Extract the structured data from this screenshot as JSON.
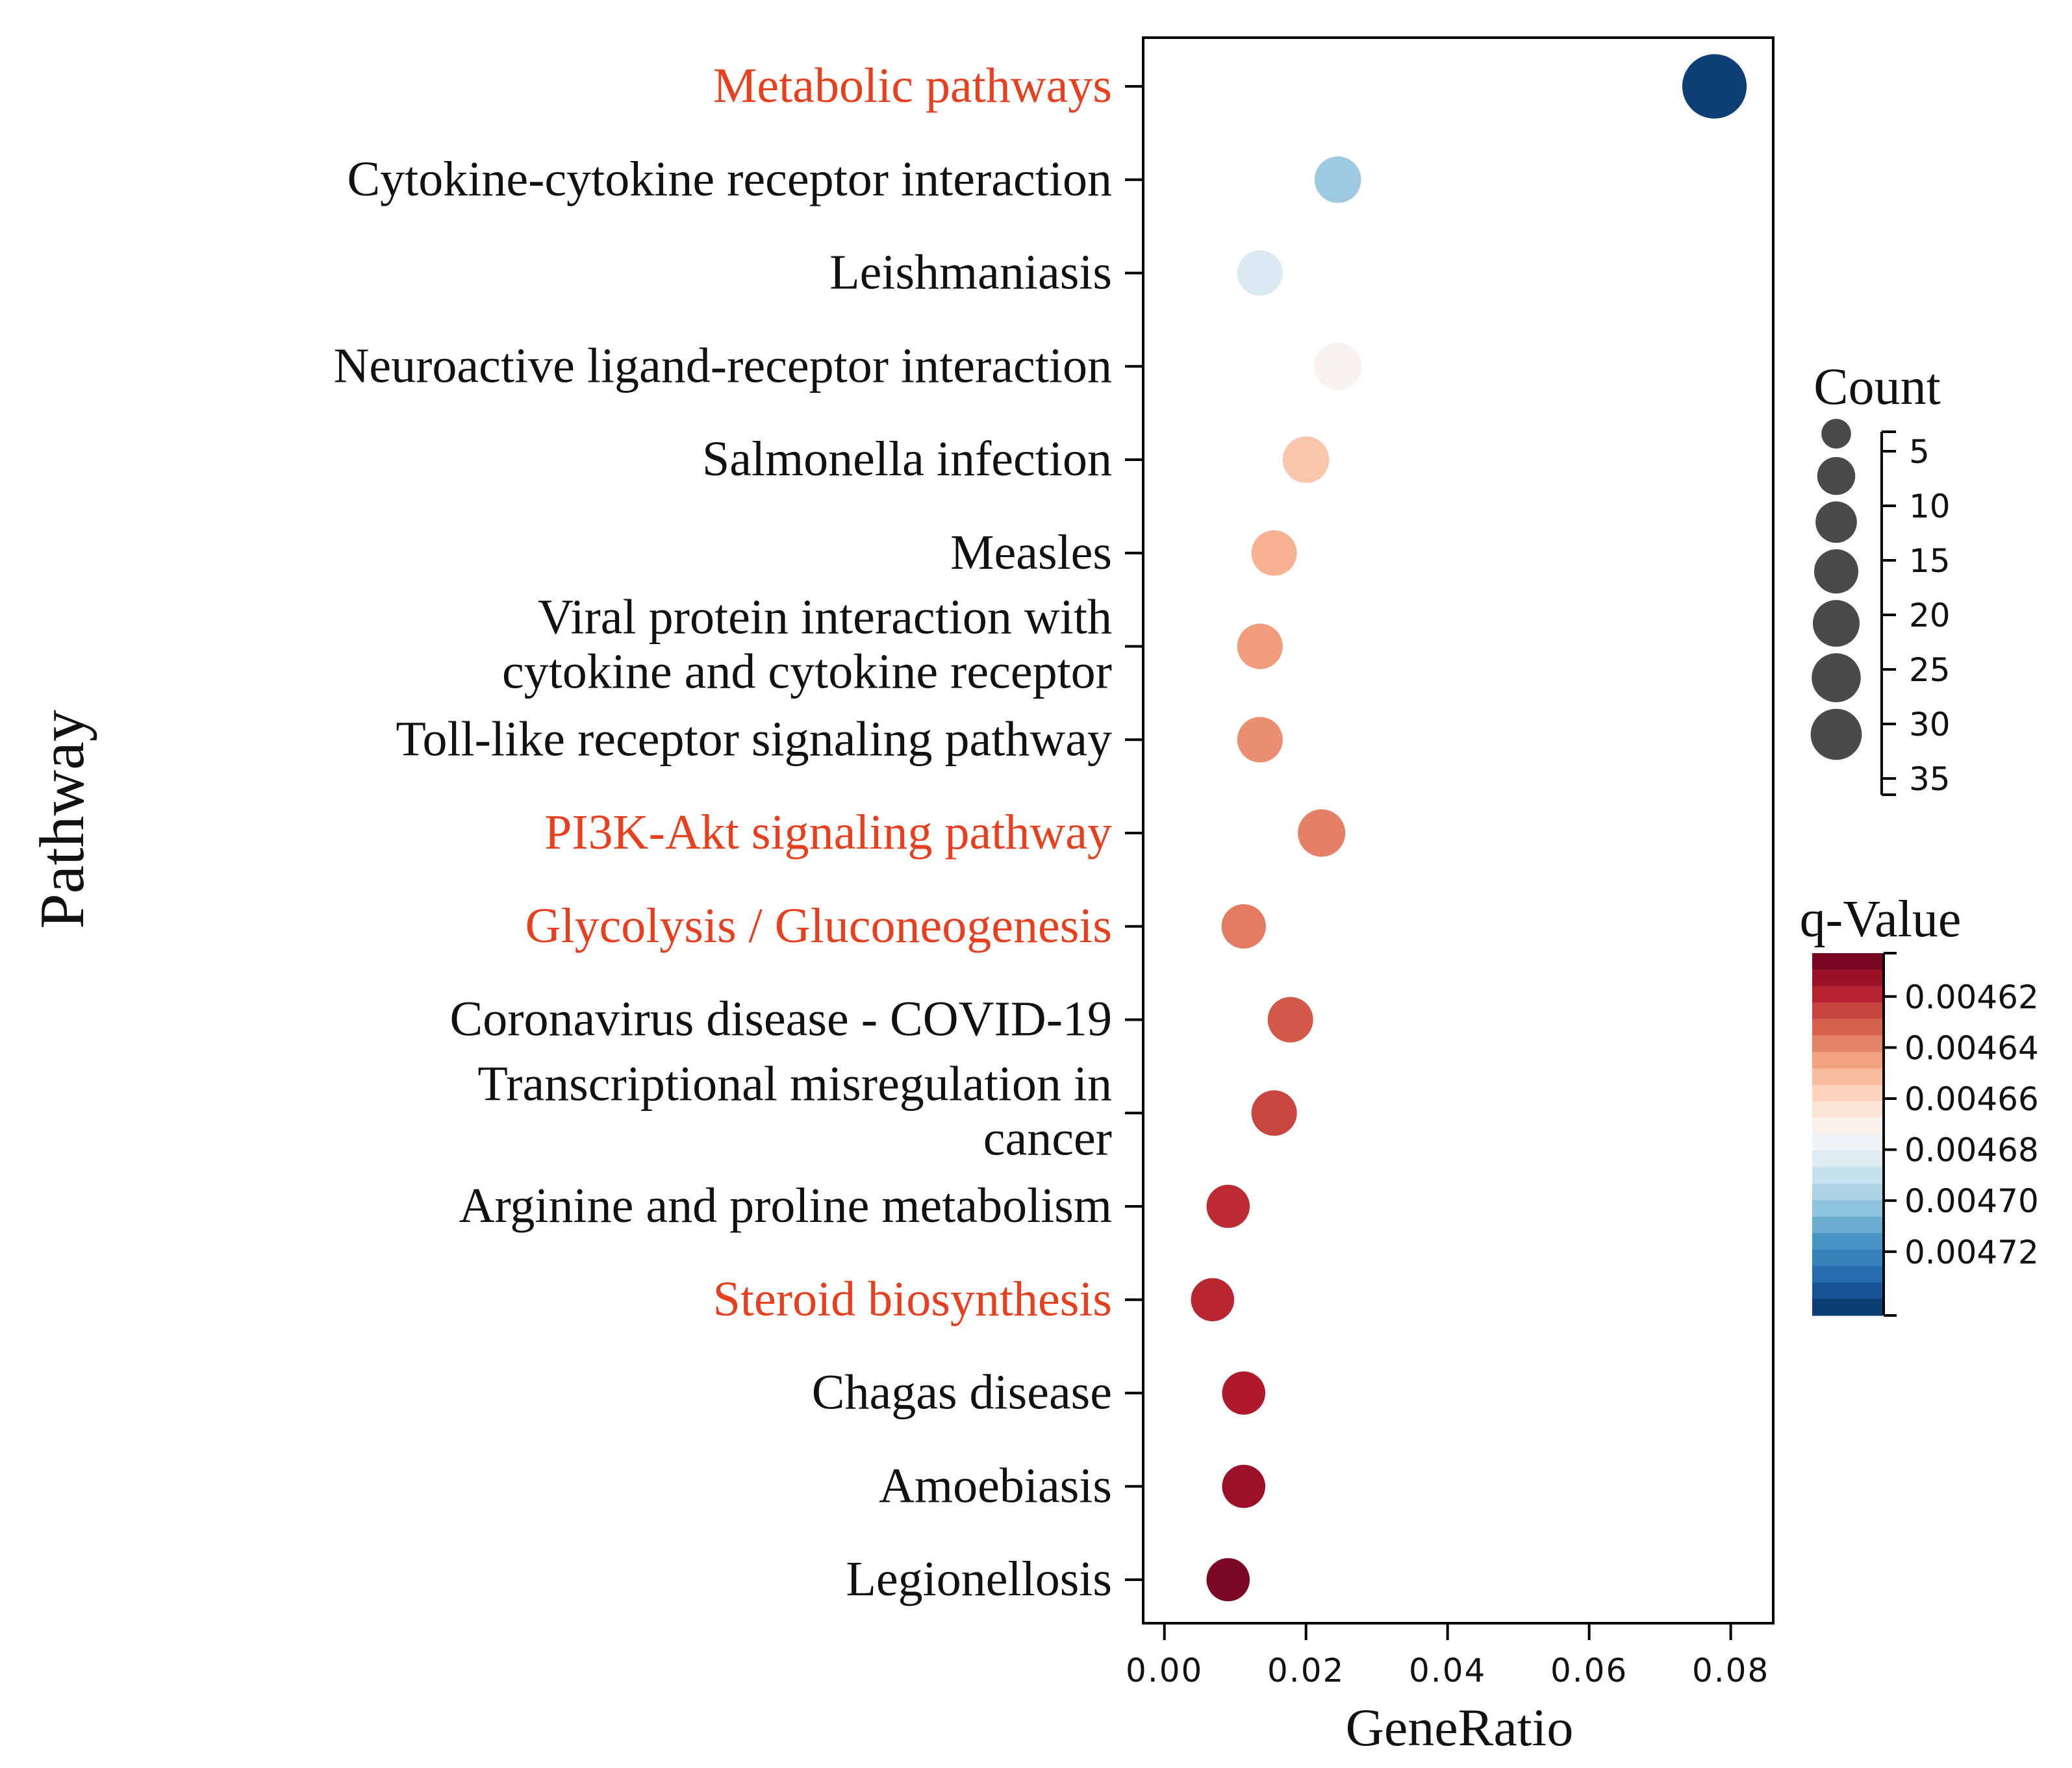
{
  "chart_data": {
    "type": "scatter",
    "subtype": "bubble",
    "xlabel": "GeneRatio",
    "ylabel": "Pathway",
    "xlim": [
      -0.003,
      0.086
    ],
    "xticks": [
      0.0,
      0.02,
      0.04,
      0.06,
      0.08
    ],
    "xtick_labels": [
      "0.00",
      "0.02",
      "0.04",
      "0.06",
      "0.08"
    ],
    "highlight_color": "#e8401e",
    "label_color": "#111111",
    "points": [
      {
        "pathway_lines": [
          "Metabolic pathways"
        ],
        "gene_ratio": 0.0777,
        "count": 36,
        "q_value": 0.004741,
        "highlight": true
      },
      {
        "pathway_lines": [
          "Cytokine-cytokine receptor interaction"
        ],
        "gene_ratio": 0.0245,
        "count": 9,
        "q_value": 0.0047,
        "highlight": false
      },
      {
        "pathway_lines": [
          "Leishmaniasis"
        ],
        "gene_ratio": 0.0135,
        "count": 8,
        "q_value": 0.004685,
        "highlight": false
      },
      {
        "pathway_lines": [
          "Neuroactive ligand-receptor interaction"
        ],
        "gene_ratio": 0.0245,
        "count": 10,
        "q_value": 0.004672,
        "highlight": false
      },
      {
        "pathway_lines": [
          "Salmonella infection"
        ],
        "gene_ratio": 0.02,
        "count": 9,
        "q_value": 0.004654,
        "highlight": false
      },
      {
        "pathway_lines": [
          "Measles"
        ],
        "gene_ratio": 0.0155,
        "count": 8,
        "q_value": 0.004649,
        "highlight": false
      },
      {
        "pathway_lines": [
          "Viral protein interaction with",
          "cytokine and cytokine receptor"
        ],
        "gene_ratio": 0.0135,
        "count": 8,
        "q_value": 0.004644,
        "highlight": false
      },
      {
        "pathway_lines": [
          "Toll-like receptor signaling pathway"
        ],
        "gene_ratio": 0.0135,
        "count": 8,
        "q_value": 0.004641,
        "highlight": false
      },
      {
        "pathway_lines": [
          "PI3K-Akt signaling pathway"
        ],
        "gene_ratio": 0.0222,
        "count": 10,
        "q_value": 0.004638,
        "highlight": true
      },
      {
        "pathway_lines": [
          "Glycolysis / Gluconeogenesis"
        ],
        "gene_ratio": 0.0112,
        "count": 7,
        "q_value": 0.004637,
        "highlight": true
      },
      {
        "pathway_lines": [
          "Coronavirus disease - COVID-19"
        ],
        "gene_ratio": 0.0178,
        "count": 8,
        "q_value": 0.00463,
        "highlight": false
      },
      {
        "pathway_lines": [
          "Transcriptional misregulation in",
          "cancer"
        ],
        "gene_ratio": 0.0155,
        "count": 8,
        "q_value": 0.004626,
        "highlight": false
      },
      {
        "pathway_lines": [
          "Arginine and proline metabolism"
        ],
        "gene_ratio": 0.009,
        "count": 6,
        "q_value": 0.004621,
        "highlight": false
      },
      {
        "pathway_lines": [
          "Steroid biosynthesis"
        ],
        "gene_ratio": 0.0068,
        "count": 6,
        "q_value": 0.00462,
        "highlight": true
      },
      {
        "pathway_lines": [
          "Chagas disease"
        ],
        "gene_ratio": 0.0112,
        "count": 6,
        "q_value": 0.004617,
        "highlight": false
      },
      {
        "pathway_lines": [
          "Amoebiasis"
        ],
        "gene_ratio": 0.0112,
        "count": 6,
        "q_value": 0.004613,
        "highlight": false
      },
      {
        "pathway_lines": [
          "Legionellosis"
        ],
        "gene_ratio": 0.009,
        "count": 6,
        "q_value": 0.004607,
        "highlight": false
      }
    ],
    "size_legend": {
      "title": "Count",
      "values": [
        5,
        10,
        15,
        20,
        25,
        30,
        35
      ]
    },
    "color_legend": {
      "title": "q-Value",
      "range": [
        0.004603,
        0.004745
      ],
      "ticks": [
        0.00462,
        0.00464,
        0.00466,
        0.00468,
        0.0047,
        0.00472
      ],
      "tick_labels": [
        "0.00462",
        "0.00464",
        "0.00466",
        "0.00468",
        "0.00470",
        "0.00472"
      ],
      "colormap": [
        "#67001f",
        "#b2182b",
        "#d6604d",
        "#f4a582",
        "#fddbc7",
        "#f7f7f7",
        "#d1e5f0",
        "#92c5de",
        "#4393c3",
        "#2166ac",
        "#053061"
      ]
    }
  }
}
